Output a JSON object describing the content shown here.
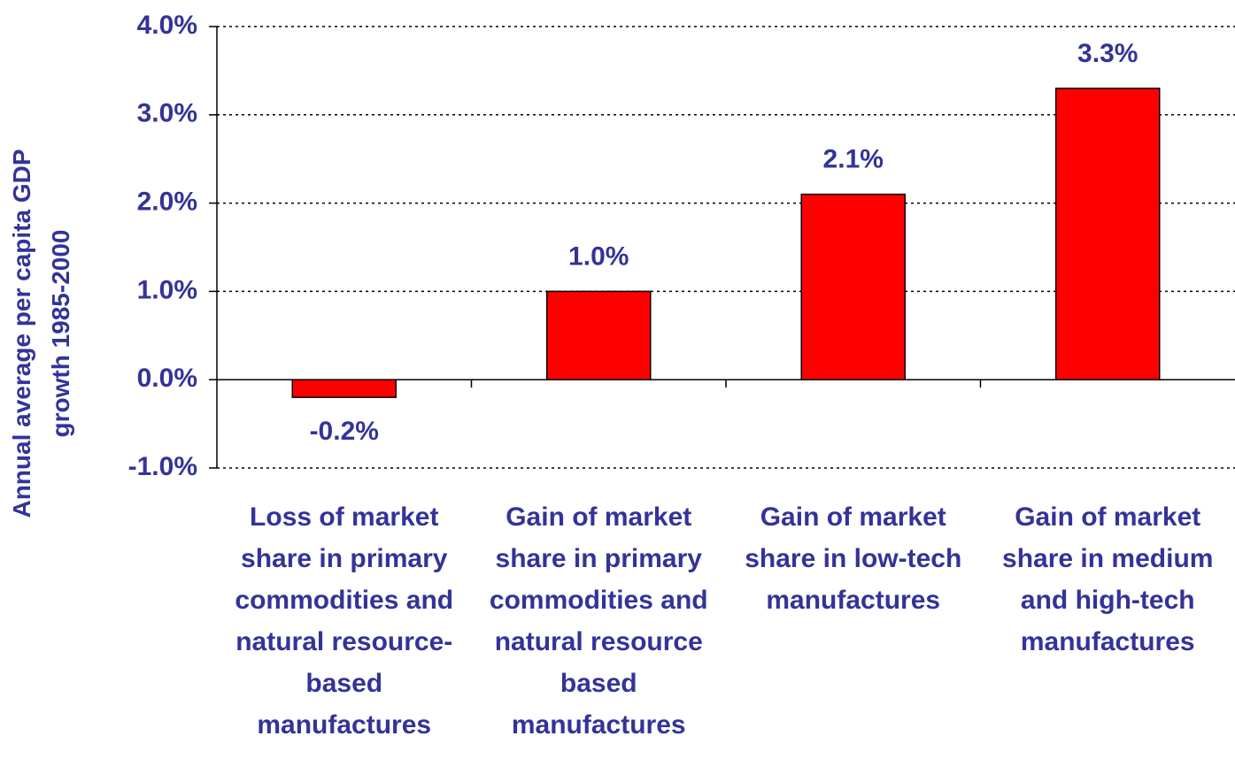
{
  "chart_data": {
    "type": "bar",
    "ylabel": "Annual average per capita GDP growth 1985-2000",
    "categories": [
      "Loss of market share in primary commodities and natural resource-based manufactures",
      "Gain of market share in primary commodities and natural resource based manufactures",
      "Gain of market share in low-tech manufactures",
      "Gain of market share in medium and high-tech manufactures"
    ],
    "values": [
      -0.2,
      1.0,
      2.1,
      3.3
    ],
    "value_labels": [
      "-0.2%",
      "1.0%",
      "2.1%",
      "3.3%"
    ],
    "color": "#ff0000",
    "ylim": [
      -1,
      4
    ],
    "yticks": [
      {
        "value": -1,
        "label": "-1.0%"
      },
      {
        "value": 0,
        "label": "0.0%"
      },
      {
        "value": 1,
        "label": "1.0%"
      },
      {
        "value": 2,
        "label": "2.0%"
      },
      {
        "value": 3,
        "label": "3.0%"
      },
      {
        "value": 4,
        "label": "4.0%"
      }
    ],
    "grid": true
  }
}
